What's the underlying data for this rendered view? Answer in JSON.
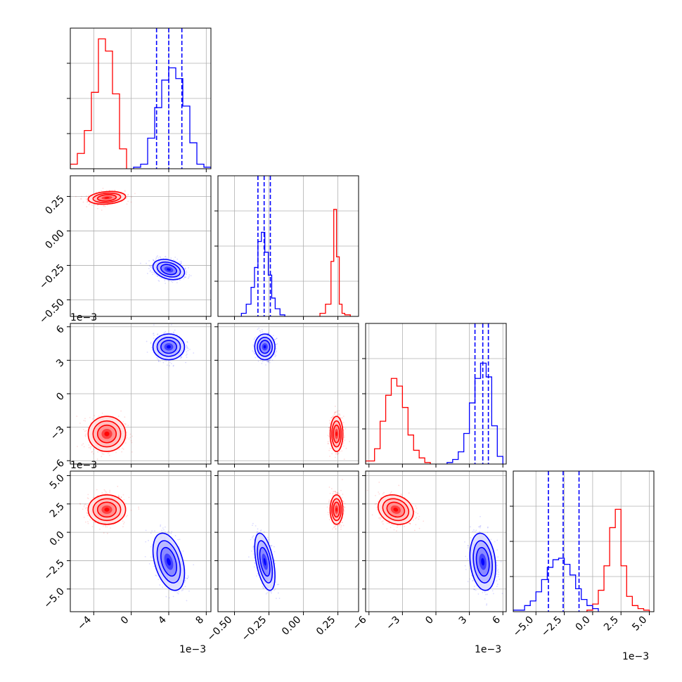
{
  "colors": {
    "series_a": "#ff0000",
    "series_b": "#0000ff",
    "grid": "#b0b0b0",
    "axis": "#000000"
  },
  "chart_data": {
    "type": "corner",
    "title": "",
    "grid": true,
    "parameters": [
      {
        "range": [
          -6.5,
          8.5
        ],
        "ticks": [
          -4,
          0,
          4,
          8
        ],
        "tick_labels": [
          "−4",
          "0",
          "4",
          "8"
        ],
        "offset_text": "1e−3"
      },
      {
        "range": [
          -0.62,
          0.4
        ],
        "ticks": [
          -0.5,
          -0.25,
          0.0,
          0.25
        ],
        "tick_labels": [
          "−0.50",
          "−0.25",
          "0.00",
          "0.25"
        ],
        "offset_text": ""
      },
      {
        "range": [
          -6.3,
          6.3
        ],
        "ticks": [
          -6,
          -3,
          0,
          3,
          6
        ],
        "tick_labels": [
          "−6",
          "−3",
          "0",
          "3",
          "6"
        ],
        "offset_text": "1e−3"
      },
      {
        "range": [
          -7.0,
          5.4
        ],
        "ticks": [
          -5,
          -2.5,
          0,
          2.5,
          5
        ],
        "tick_labels": [
          "−5.0",
          "−2.5",
          "0.0",
          "2.5",
          "5.0"
        ],
        "offset_text": "1e−3"
      }
    ],
    "series": [
      {
        "color": "#ff0000",
        "mean": [
          -2.6,
          0.24,
          -3.6,
          2.0
        ],
        "sd": [
          0.95,
          0.022,
          0.75,
          0.62
        ],
        "correlations": [
          [
            0,
            1,
            0.2
          ],
          [
            2,
            3,
            -0.2
          ],
          [
            0,
            3,
            0.0
          ]
        ]
      },
      {
        "color": "#0000ff",
        "mean": [
          4.0,
          -0.28,
          4.2,
          -2.6
        ],
        "sd": [
          0.8,
          0.035,
          0.55,
          1.2
        ],
        "correlations": [
          [
            0,
            1,
            -0.3
          ],
          [
            0,
            3,
            -0.4
          ],
          [
            1,
            3,
            -0.5
          ],
          [
            2,
            3,
            -0.2
          ]
        ]
      }
    ],
    "quantile_lines": [
      {
        "param": 0,
        "values": [
          2.7,
          4.0,
          5.4
        ]
      },
      {
        "param": 1,
        "values": [
          -0.33,
          -0.285,
          -0.24
        ]
      },
      {
        "param": 2,
        "values": [
          3.5,
          4.2,
          4.7
        ]
      },
      {
        "param": 3,
        "values": [
          -3.9,
          -2.6,
          -1.2
        ]
      }
    ],
    "histograms": [
      {
        "param": 0,
        "red": {
          "edges": [
            -6.5,
            -5.75,
            -5.0,
            -4.25,
            -3.5,
            -2.75,
            -2.0,
            -1.25,
            -0.5
          ],
          "counts": [
            0.03,
            0.1,
            0.25,
            0.5,
            0.85,
            0.77,
            0.49,
            0.13
          ]
        },
        "blue": {
          "edges": [
            0.25,
            1.0,
            1.75,
            2.5,
            3.25,
            4.0,
            4.75,
            5.5,
            6.25,
            7.0,
            7.75,
            8.5
          ],
          "counts": [
            0.01,
            0.03,
            0.2,
            0.4,
            0.58,
            0.66,
            0.59,
            0.41,
            0.17,
            0.03,
            0.01
          ]
        }
      },
      {
        "param": 1,
        "red": {
          "edges": [
            0.12,
            0.16,
            0.2,
            0.22,
            0.24,
            0.26,
            0.28,
            0.3,
            0.34
          ],
          "counts": [
            0.02,
            0.08,
            0.36,
            0.7,
            0.39,
            0.08,
            0.02,
            0.01
          ]
        },
        "blue": {
          "edges": [
            -0.45,
            -0.415,
            -0.38,
            -0.355,
            -0.33,
            -0.305,
            -0.28,
            -0.255,
            -0.23,
            -0.205,
            -0.17,
            -0.135
          ],
          "counts": [
            0.02,
            0.08,
            0.19,
            0.32,
            0.49,
            0.55,
            0.42,
            0.27,
            0.12,
            0.05,
            0.01
          ]
        }
      },
      {
        "param": 2,
        "red": {
          "edges": [
            -6.3,
            -5.5,
            -5.0,
            -4.5,
            -4.0,
            -3.5,
            -3.0,
            -2.5,
            -2.0,
            -1.5,
            -1.0,
            -0.5
          ],
          "counts": [
            0.02,
            0.1,
            0.28,
            0.45,
            0.56,
            0.51,
            0.37,
            0.19,
            0.09,
            0.04,
            0.01
          ]
        },
        "blue": {
          "edges": [
            1.0,
            1.5,
            2.0,
            2.5,
            3.0,
            3.5,
            4.0,
            4.5,
            5.0,
            5.5,
            6.0
          ],
          "counts": [
            0.01,
            0.03,
            0.08,
            0.2,
            0.4,
            0.56,
            0.66,
            0.57,
            0.25,
            0.05
          ]
        }
      },
      {
        "param": 3,
        "red": {
          "edges": [
            -0.5,
            0.0,
            0.5,
            1.0,
            1.5,
            2.0,
            2.5,
            3.0,
            3.5,
            4.0,
            4.5,
            5.0
          ],
          "counts": [
            0.01,
            0.05,
            0.14,
            0.3,
            0.55,
            0.67,
            0.3,
            0.1,
            0.04,
            0.02,
            0.01
          ]
        },
        "blue": {
          "edges": [
            -7.0,
            -6.0,
            -5.5,
            -5.0,
            -4.5,
            -4.0,
            -3.5,
            -3.0,
            -2.5,
            -2.0,
            -1.5,
            -1.0,
            -0.5,
            0.0,
            0.5
          ],
          "counts": [
            0.01,
            0.04,
            0.07,
            0.13,
            0.21,
            0.29,
            0.34,
            0.35,
            0.31,
            0.24,
            0.15,
            0.08,
            0.04,
            0.02
          ]
        }
      }
    ]
  }
}
